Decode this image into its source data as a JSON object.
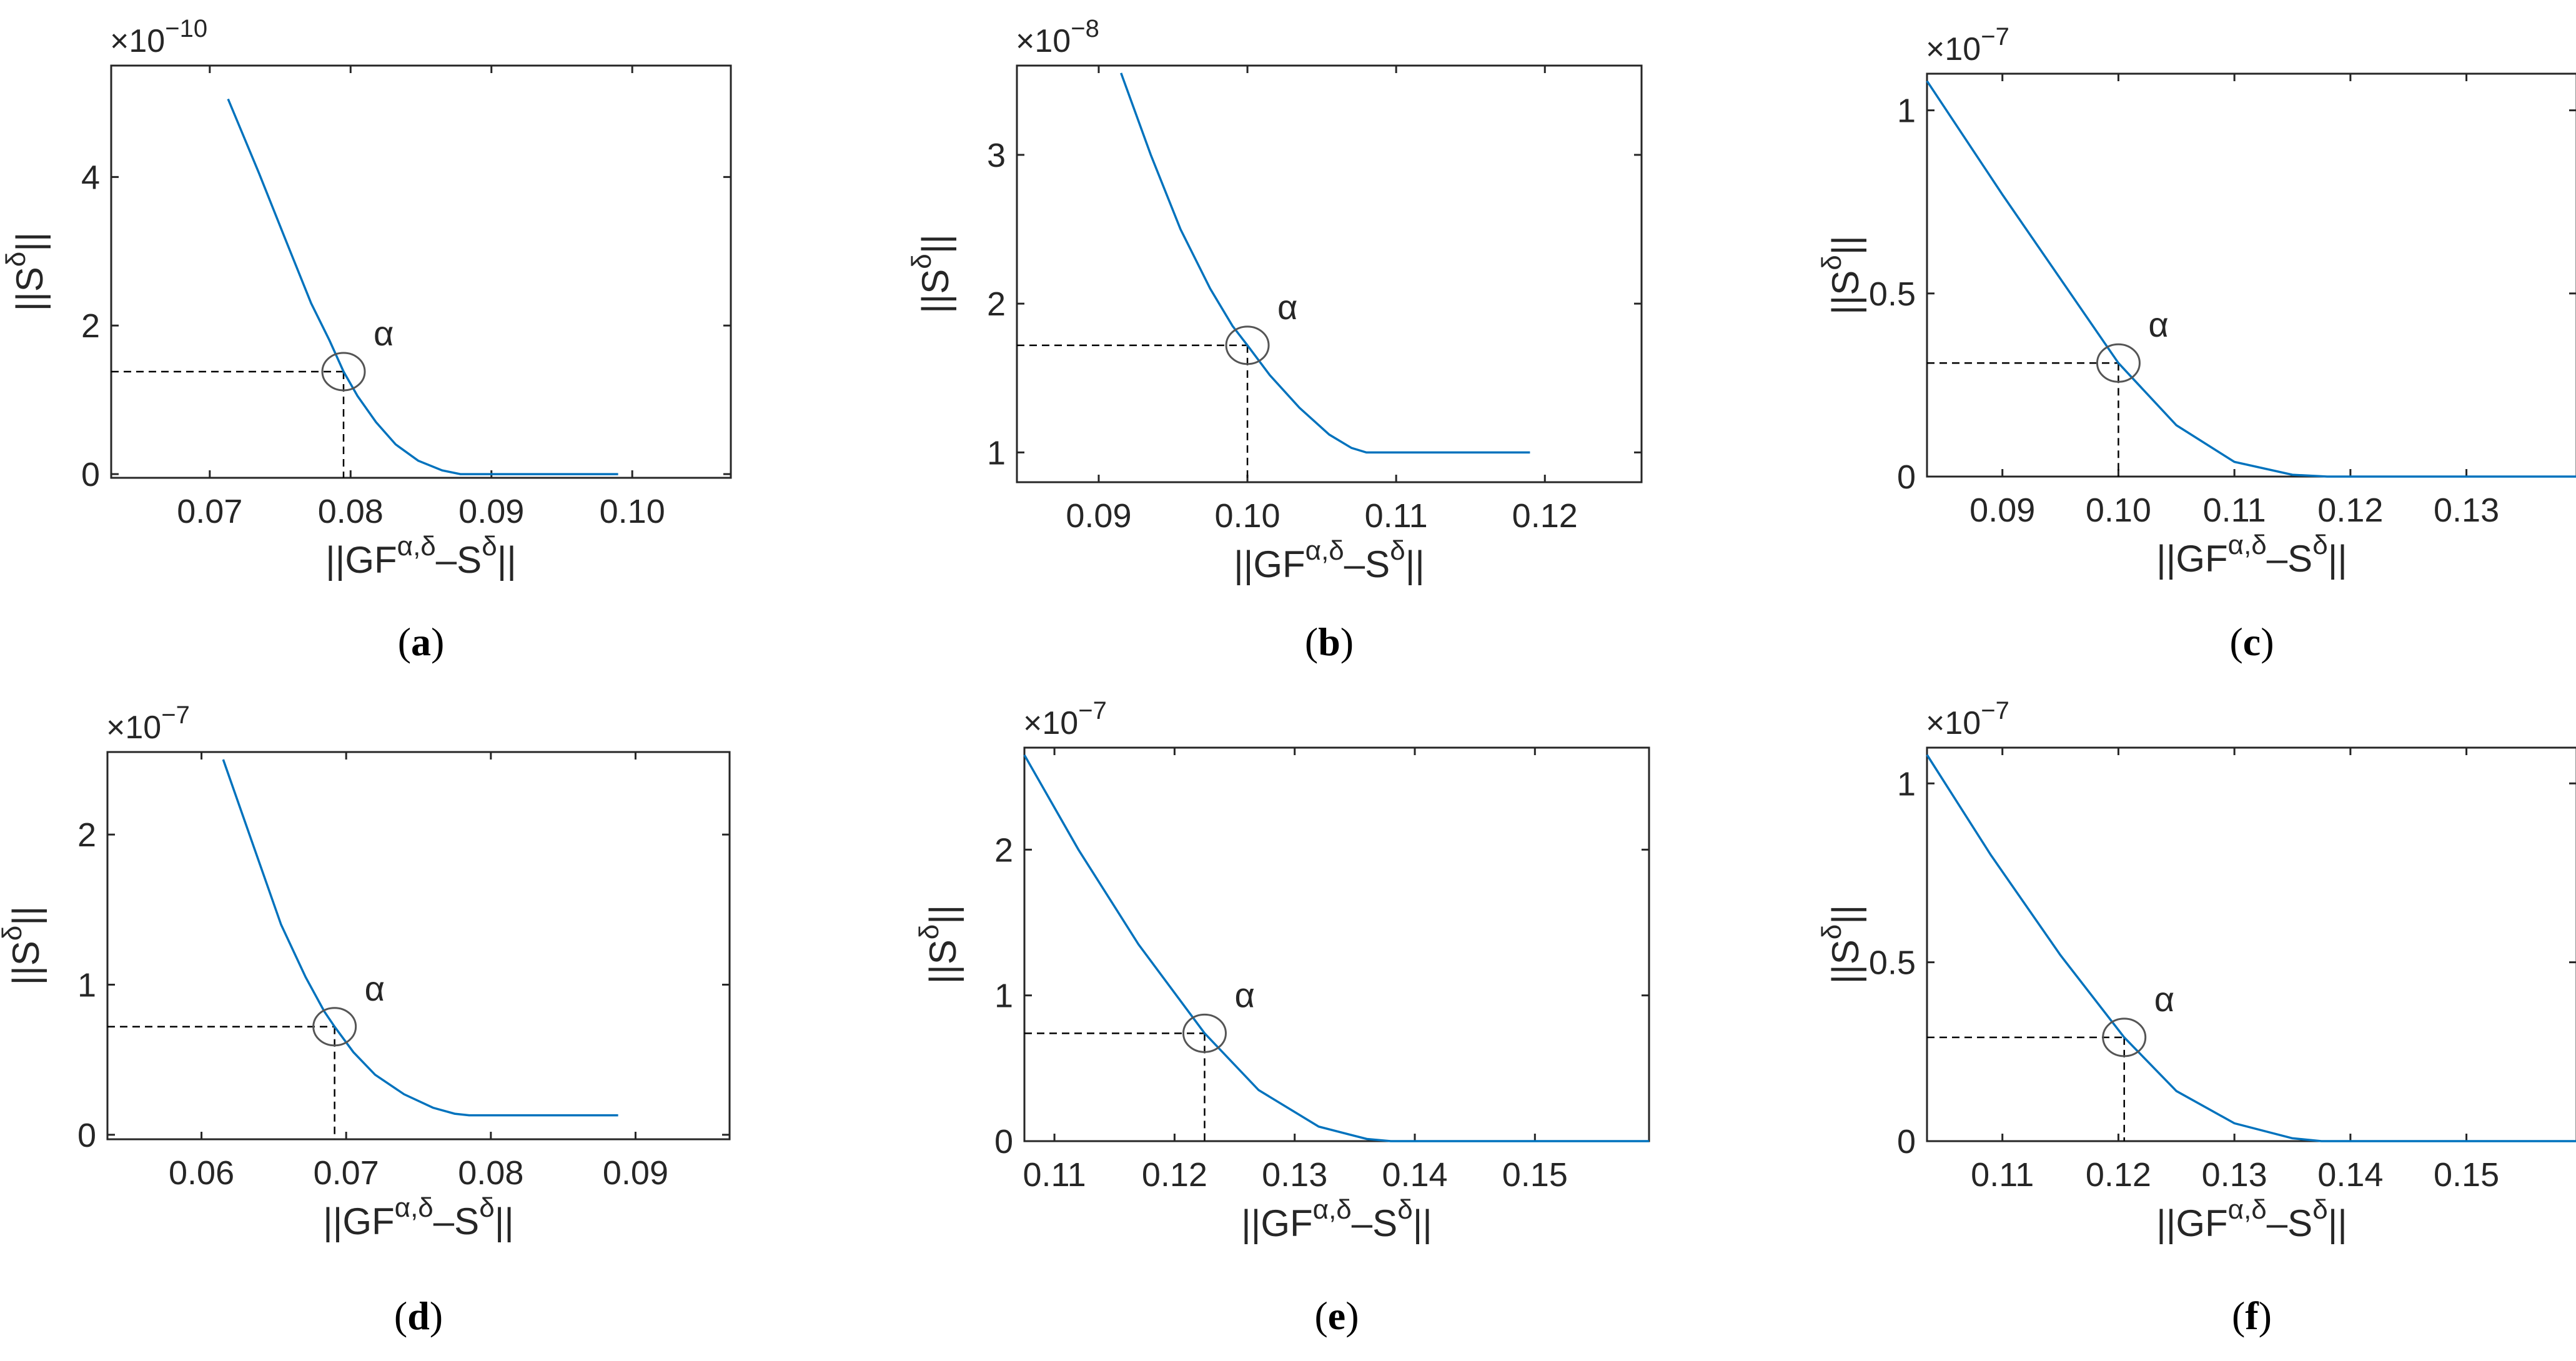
{
  "figure": {
    "accent_color": "#0072BD",
    "axis_color": "#262626",
    "dashed_color": "#000000",
    "circle_color": "#555555"
  },
  "chart_data": [
    {
      "type": "line",
      "caption": "a",
      "exponent": "×10",
      "exponent_power": "−10",
      "xlabel": "||GF",
      "xlabel_sup": "α,δ",
      "xlabel_tail": "–S",
      "xlabel_sup2": "δ",
      "xlabel_end": "||",
      "ylabel": "||S",
      "ylabel_sup": "δ",
      "ylabel_end": "||",
      "xlim": [
        0.063,
        0.107
      ],
      "ylim": [
        -0.05,
        5.5
      ],
      "xticks": [
        0.07,
        0.08,
        0.09,
        0.1
      ],
      "xticklabels": [
        "0.07",
        "0.08",
        "0.09",
        "0.10"
      ],
      "yticks": [
        0,
        2,
        4
      ],
      "yticklabels": [
        "0",
        "2",
        "4"
      ],
      "marker_label": "α",
      "marker": {
        "x": 0.0795,
        "y": 1.38
      },
      "x": [
        0.0713,
        0.0735,
        0.0755,
        0.0772,
        0.0785,
        0.0795,
        0.0805,
        0.0818,
        0.0832,
        0.0848,
        0.0865,
        0.0878,
        0.099
      ],
      "y": [
        5.05,
        4.05,
        3.1,
        2.3,
        1.8,
        1.38,
        1.05,
        0.7,
        0.4,
        0.18,
        0.05,
        0.0,
        0.0
      ]
    },
    {
      "type": "line",
      "caption": "b",
      "exponent": "×10",
      "exponent_power": "−8",
      "xlabel": "||GF",
      "xlabel_sup": "α,δ",
      "xlabel_tail": "–S",
      "xlabel_sup2": "δ",
      "xlabel_end": "||",
      "ylabel": "||S",
      "ylabel_sup": "δ",
      "ylabel_end": "||",
      "xlim": [
        0.0845,
        0.1265
      ],
      "ylim": [
        0.8,
        3.6
      ],
      "xticks": [
        0.09,
        0.1,
        0.11,
        0.12
      ],
      "xticklabels": [
        "0.09",
        "0.10",
        "0.11",
        "0.12"
      ],
      "yticks": [
        1,
        2,
        3
      ],
      "yticklabels": [
        "1",
        "2",
        "3"
      ],
      "marker_label": "α",
      "marker": {
        "x": 0.1,
        "y": 1.72
      },
      "x": [
        0.0915,
        0.0935,
        0.0955,
        0.0975,
        0.099,
        0.1,
        0.1015,
        0.1035,
        0.1055,
        0.107,
        0.108,
        0.119
      ],
      "y": [
        3.55,
        3.0,
        2.5,
        2.1,
        1.85,
        1.72,
        1.52,
        1.3,
        1.12,
        1.03,
        1.0,
        1.0
      ]
    },
    {
      "type": "line",
      "caption": "c",
      "exponent": "×10",
      "exponent_power": "−7",
      "xlabel": "||GF",
      "xlabel_sup": "α,δ",
      "xlabel_tail": "–S",
      "xlabel_sup2": "δ",
      "xlabel_end": "||",
      "ylabel": "||S",
      "ylabel_sup": "δ",
      "ylabel_end": "||",
      "xlim": [
        0.0835,
        0.1395
      ],
      "ylim": [
        0,
        1.1
      ],
      "xticks": [
        0.09,
        0.1,
        0.11,
        0.12,
        0.13
      ],
      "xticklabels": [
        "0.09",
        "0.10",
        "0.11",
        "0.12",
        "0.13"
      ],
      "yticks": [
        0,
        0.5,
        1
      ],
      "yticklabels": [
        "0",
        "0.5",
        "1"
      ],
      "marker_label": "α",
      "marker": {
        "x": 0.1,
        "y": 0.31
      },
      "x": [
        0.0835,
        0.09,
        0.095,
        0.1,
        0.105,
        0.11,
        0.115,
        0.118,
        0.1395
      ],
      "y": [
        1.08,
        0.77,
        0.54,
        0.31,
        0.14,
        0.04,
        0.005,
        0.0,
        0.0
      ]
    },
    {
      "type": "line",
      "caption": "d",
      "exponent": "×10",
      "exponent_power": "−7",
      "xlabel": "||GF",
      "xlabel_sup": "α,δ",
      "xlabel_tail": "–S",
      "xlabel_sup2": "δ",
      "xlabel_end": "||",
      "ylabel": "||S",
      "ylabel_sup": "δ",
      "ylabel_end": "||",
      "xlim": [
        0.0535,
        0.0965
      ],
      "ylim": [
        -0.03,
        2.55
      ],
      "xticks": [
        0.06,
        0.07,
        0.08,
        0.09
      ],
      "xticklabels": [
        "0.06",
        "0.07",
        "0.08",
        "0.09"
      ],
      "yticks": [
        0,
        1,
        2
      ],
      "yticklabels": [
        "0",
        "1",
        "2"
      ],
      "marker_label": "α",
      "marker": {
        "x": 0.0692,
        "y": 0.72
      },
      "x": [
        0.0615,
        0.0635,
        0.0655,
        0.0672,
        0.0685,
        0.0692,
        0.0705,
        0.072,
        0.074,
        0.076,
        0.0775,
        0.0785,
        0.0888
      ],
      "y": [
        2.5,
        1.95,
        1.4,
        1.05,
        0.82,
        0.72,
        0.55,
        0.4,
        0.27,
        0.18,
        0.14,
        0.13,
        0.13
      ]
    },
    {
      "type": "line",
      "caption": "e",
      "exponent": "×10",
      "exponent_power": "−7",
      "xlabel": "||GF",
      "xlabel_sup": "α,δ",
      "xlabel_tail": "–S",
      "xlabel_sup2": "δ",
      "xlabel_end": "||",
      "ylabel": "||S",
      "ylabel_sup": "δ",
      "ylabel_end": "||",
      "xlim": [
        0.1075,
        0.1595
      ],
      "ylim": [
        0,
        2.7
      ],
      "xticks": [
        0.11,
        0.12,
        0.13,
        0.14,
        0.15
      ],
      "xticklabels": [
        "0.11",
        "0.12",
        "0.13",
        "0.14",
        "0.15"
      ],
      "yticks": [
        0,
        1,
        2
      ],
      "yticklabels": [
        "0",
        "1",
        "2"
      ],
      "marker_label": "α",
      "marker": {
        "x": 0.1225,
        "y": 0.74
      },
      "x": [
        0.1075,
        0.112,
        0.117,
        0.1225,
        0.127,
        0.132,
        0.136,
        0.138,
        0.1595
      ],
      "y": [
        2.65,
        2.0,
        1.35,
        0.74,
        0.35,
        0.1,
        0.015,
        0.0,
        0.0
      ]
    },
    {
      "type": "line",
      "caption": "f",
      "exponent": "×10",
      "exponent_power": "−7",
      "xlabel": "||GF",
      "xlabel_sup": "α,δ",
      "xlabel_tail": "–S",
      "xlabel_sup2": "δ",
      "xlabel_end": "||",
      "ylabel": "||S",
      "ylabel_sup": "δ",
      "ylabel_end": "||",
      "xlim": [
        0.1035,
        0.1595
      ],
      "ylim": [
        0,
        1.1
      ],
      "xticks": [
        0.11,
        0.12,
        0.13,
        0.14,
        0.15
      ],
      "xticklabels": [
        "0.11",
        "0.12",
        "0.13",
        "0.14",
        "0.15"
      ],
      "yticks": [
        0,
        0.5,
        1
      ],
      "yticklabels": [
        "0",
        "0.5",
        "1"
      ],
      "marker_label": "α",
      "marker": {
        "x": 0.1205,
        "y": 0.29
      },
      "x": [
        0.1035,
        0.109,
        0.115,
        0.1205,
        0.125,
        0.13,
        0.135,
        0.1375,
        0.1595
      ],
      "y": [
        1.08,
        0.8,
        0.52,
        0.29,
        0.14,
        0.05,
        0.008,
        0.0,
        0.0
      ]
    }
  ]
}
